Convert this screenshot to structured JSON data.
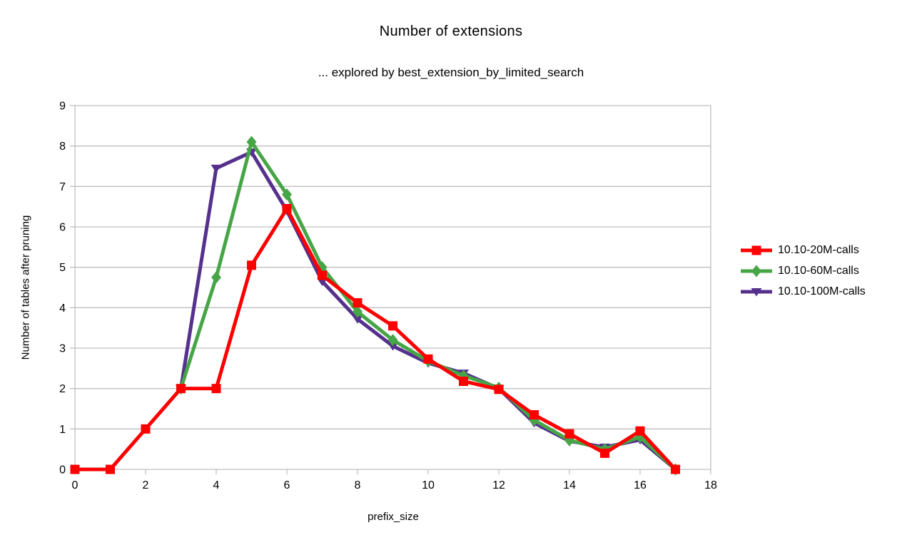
{
  "chart_data": {
    "type": "line",
    "title": "Number of extensions",
    "subtitle": "... explored by best_extension_by_limited_search",
    "xlabel": "prefix_size",
    "ylabel": "Number of tables after pruning",
    "xlim": [
      0,
      18
    ],
    "ylim": [
      0,
      9
    ],
    "xticks": [
      0,
      2,
      4,
      6,
      8,
      10,
      12,
      14,
      16,
      18
    ],
    "yticks": [
      0,
      1,
      2,
      3,
      4,
      5,
      6,
      7,
      8,
      9
    ],
    "grid": "horizontal-only",
    "legend_position": "right",
    "colors": {
      "grid": "#bfbfbf",
      "axis": "#bfbfbf",
      "text": "#000000",
      "background": "#ffffff"
    },
    "series": [
      {
        "name": "10.10-20M-calls",
        "color": "#fe0000",
        "marker": "square",
        "x": [
          0,
          1,
          2,
          3,
          4,
          5,
          6,
          7,
          8,
          9,
          10,
          11,
          12,
          13,
          14,
          15,
          16,
          17
        ],
        "y": [
          0,
          0,
          1,
          2,
          2,
          5.05,
          6.45,
          4.8,
          4.12,
          3.55,
          2.73,
          2.18,
          1.98,
          1.35,
          0.88,
          0.4,
          0.95,
          0
        ]
      },
      {
        "name": "10.10-60M-calls",
        "color": "#46a546",
        "marker": "diamond",
        "x": [
          3,
          4,
          5,
          6,
          7,
          8,
          9,
          10,
          11,
          12,
          13,
          14,
          15,
          16,
          17
        ],
        "y": [
          2,
          4.75,
          8.1,
          6.8,
          5.0,
          3.9,
          3.2,
          2.68,
          2.32,
          2.02,
          1.22,
          0.72,
          0.5,
          0.8,
          0
        ]
      },
      {
        "name": "10.10-100M-calls",
        "color": "#55308d",
        "marker": "triangle-down",
        "x": [
          3,
          4,
          5,
          6,
          7,
          8,
          9,
          10,
          11,
          12,
          13,
          14,
          15,
          16,
          17
        ],
        "y": [
          2,
          7.45,
          7.85,
          6.4,
          4.65,
          3.72,
          3.05,
          2.63,
          2.38,
          2.0,
          1.15,
          0.7,
          0.55,
          0.73,
          0
        ]
      }
    ]
  }
}
